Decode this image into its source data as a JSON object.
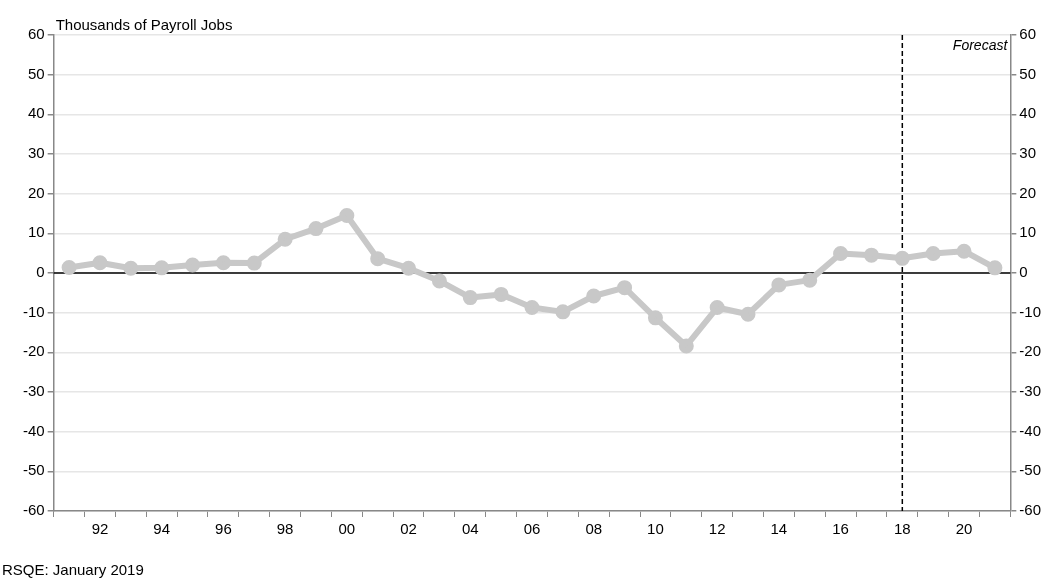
{
  "chart_data": {
    "type": "line",
    "ylabel": "Thousands of Payroll Jobs",
    "categories": [
      null,
      "92",
      null,
      "94",
      null,
      "96",
      null,
      "98",
      null,
      "00",
      null,
      "02",
      null,
      "04",
      null,
      "06",
      null,
      "08",
      null,
      "10",
      null,
      "12",
      null,
      "14",
      null,
      "16",
      null,
      "18",
      null,
      "20",
      null
    ],
    "series": [
      {
        "color": "#c8c8c8",
        "values": [
          1.4,
          2.6,
          1.2,
          1.3,
          2.0,
          2.6,
          2.5,
          8.5,
          11.2,
          14.5,
          3.6,
          1.2,
          -2.0,
          -6.2,
          -5.4,
          -8.7,
          -9.8,
          -5.8,
          -3.7,
          -11.3,
          -18.4,
          -8.7,
          -10.4,
          -3.0,
          -1.8,
          4.9,
          4.5,
          3.7,
          4.9,
          5.5,
          1.3
        ]
      }
    ],
    "ylim": [
      -60,
      60
    ],
    "yticks": [
      -60,
      -50,
      -40,
      -30,
      -20,
      -10,
      0,
      10,
      20,
      30,
      40,
      50,
      60
    ],
    "y2lim": [
      -60,
      60
    ],
    "y2ticks": [
      -60,
      -50,
      -40,
      -30,
      -20,
      -10,
      0,
      10,
      20,
      30,
      40,
      50,
      60
    ],
    "grid": "y",
    "legend": false,
    "marker": "circle",
    "line_style": "solid",
    "ref_lines": [
      {
        "axis": "x",
        "value": "18",
        "label": "Forecast",
        "color": "#000000",
        "line_style": "dashed"
      },
      {
        "axis": "y",
        "value": 0,
        "color": "#000000",
        "line_style": "solid"
      }
    ],
    "annotations": [
      "RSQE: January 2019"
    ]
  }
}
